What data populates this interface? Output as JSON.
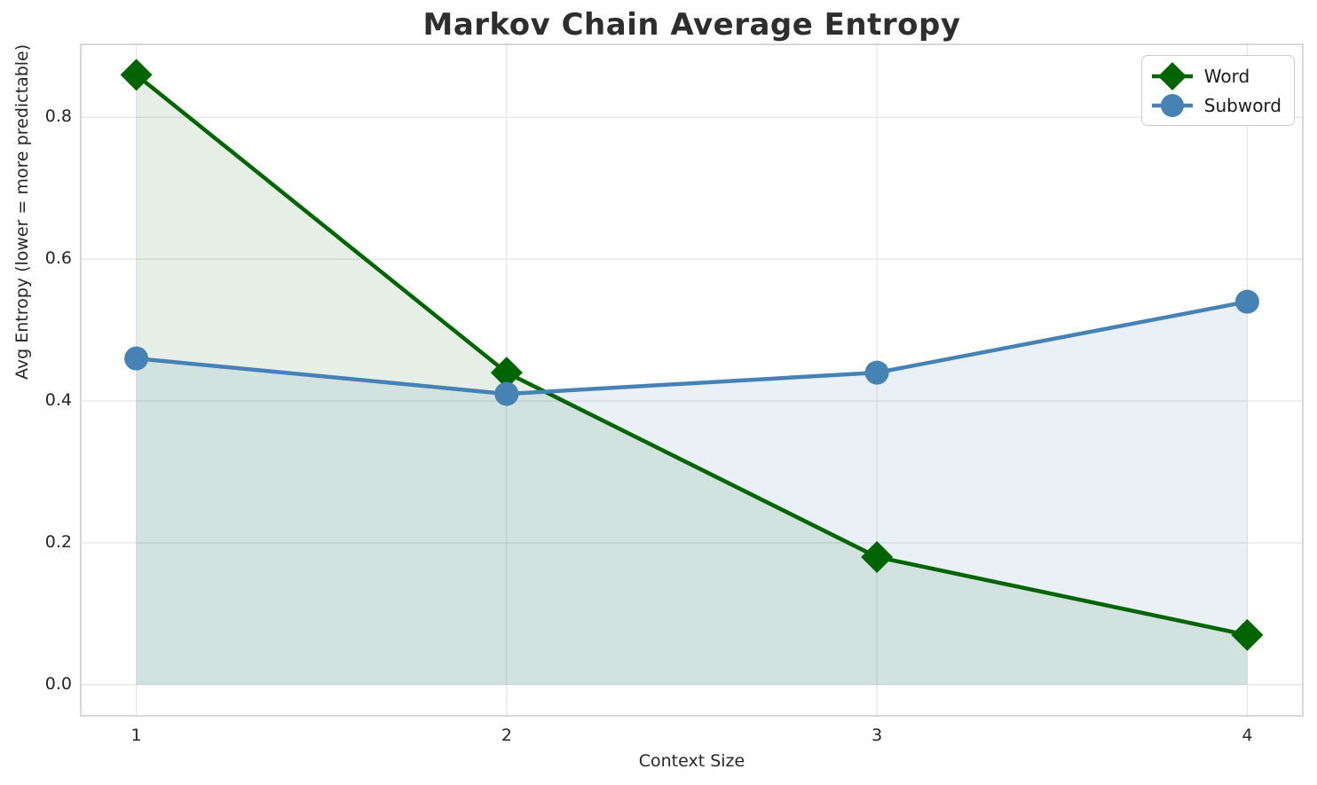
{
  "chart_data": {
    "type": "line",
    "title": "Markov Chain Average Entropy",
    "xlabel": "Context Size",
    "ylabel": "Avg Entropy (lower = more predictable)",
    "x": [
      1,
      2,
      3,
      4
    ],
    "series": [
      {
        "name": "Word",
        "values": [
          0.86,
          0.44,
          0.18,
          0.07
        ],
        "color": "#006400",
        "marker": "diamond",
        "fill_to_zero": true,
        "fill_opacity": 0.1
      },
      {
        "name": "Subword",
        "values": [
          0.46,
          0.41,
          0.44,
          0.54
        ],
        "color": "#4682b4",
        "marker": "circle",
        "fill_to_zero": true,
        "fill_opacity": 0.12
      }
    ],
    "xlim": [
      0.85,
      4.15
    ],
    "ylim": [
      -0.044,
      0.903
    ],
    "xticks": [
      1,
      2,
      3,
      4
    ],
    "xtick_labels": [
      "1",
      "2",
      "3",
      "4"
    ],
    "yticks": [
      0.0,
      0.2,
      0.4,
      0.6,
      0.8
    ],
    "ytick_labels": [
      "0.0",
      "0.2",
      "0.4",
      "0.6",
      "0.8"
    ],
    "grid": true,
    "legend_position": "upper right",
    "style": {
      "grid_color": "#e7e7e7",
      "spine_color": "#cccccc",
      "text_color": "#262626",
      "title_color": "#2e2e2e",
      "background": "#ffffff",
      "line_width": 4.5
    }
  },
  "legend": {
    "items": [
      {
        "label": "Word"
      },
      {
        "label": "Subword"
      }
    ]
  }
}
